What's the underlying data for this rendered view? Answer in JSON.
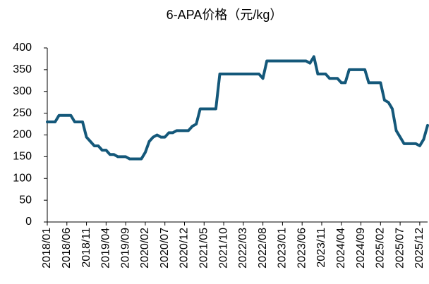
{
  "chart_data": {
    "type": "line",
    "title": "6-APA价格（元/kg）",
    "categories": [
      "2018/01",
      null,
      null,
      null,
      null,
      "2018/06",
      null,
      null,
      null,
      null,
      "2018/11",
      null,
      null,
      null,
      null,
      "2019/04",
      null,
      null,
      null,
      null,
      "2019/09",
      null,
      null,
      null,
      null,
      "2020/02",
      null,
      null,
      null,
      null,
      "2020/07",
      null,
      null,
      null,
      null,
      "2020/12",
      null,
      null,
      null,
      null,
      "2021/05",
      null,
      null,
      null,
      null,
      "2021/10",
      null,
      null,
      null,
      null,
      "2022/03",
      null,
      null,
      null,
      null,
      "2022/08",
      null,
      null,
      null,
      null,
      "2023/01",
      null,
      null,
      null,
      null,
      "2023/06",
      null,
      null,
      null,
      null,
      "2023/11",
      null,
      null,
      null,
      null,
      "2024/04",
      null,
      null,
      null,
      null,
      "2024/09",
      null,
      null,
      null,
      null,
      "2025/02",
      null,
      null,
      null,
      null,
      "2025/07",
      null,
      null,
      null,
      null,
      "2025/12",
      null,
      null
    ],
    "series": [
      {
        "name": "6-APA",
        "color": "#14587a",
        "values": [
          230,
          230,
          230,
          245,
          245,
          245,
          245,
          230,
          230,
          230,
          195,
          185,
          175,
          175,
          165,
          165,
          155,
          155,
          150,
          150,
          150,
          145,
          145,
          145,
          145,
          160,
          185,
          195,
          200,
          195,
          195,
          205,
          205,
          210,
          210,
          210,
          210,
          220,
          225,
          260,
          260,
          260,
          260,
          260,
          340,
          340,
          340,
          340,
          340,
          340,
          340,
          340,
          340,
          340,
          340,
          330,
          370,
          370,
          370,
          370,
          370,
          370,
          370,
          370,
          370,
          370,
          370,
          365,
          380,
          340,
          340,
          340,
          330,
          330,
          330,
          320,
          320,
          350,
          350,
          350,
          350,
          350,
          320,
          320,
          320,
          320,
          280,
          275,
          260,
          210,
          195,
          180,
          180,
          180,
          180,
          175,
          190,
          222
        ]
      }
    ],
    "ylim": [
      0,
      400
    ],
    "yticks": [
      0,
      50,
      100,
      150,
      200,
      250,
      300,
      350,
      400
    ],
    "grid": false,
    "legend": false
  }
}
